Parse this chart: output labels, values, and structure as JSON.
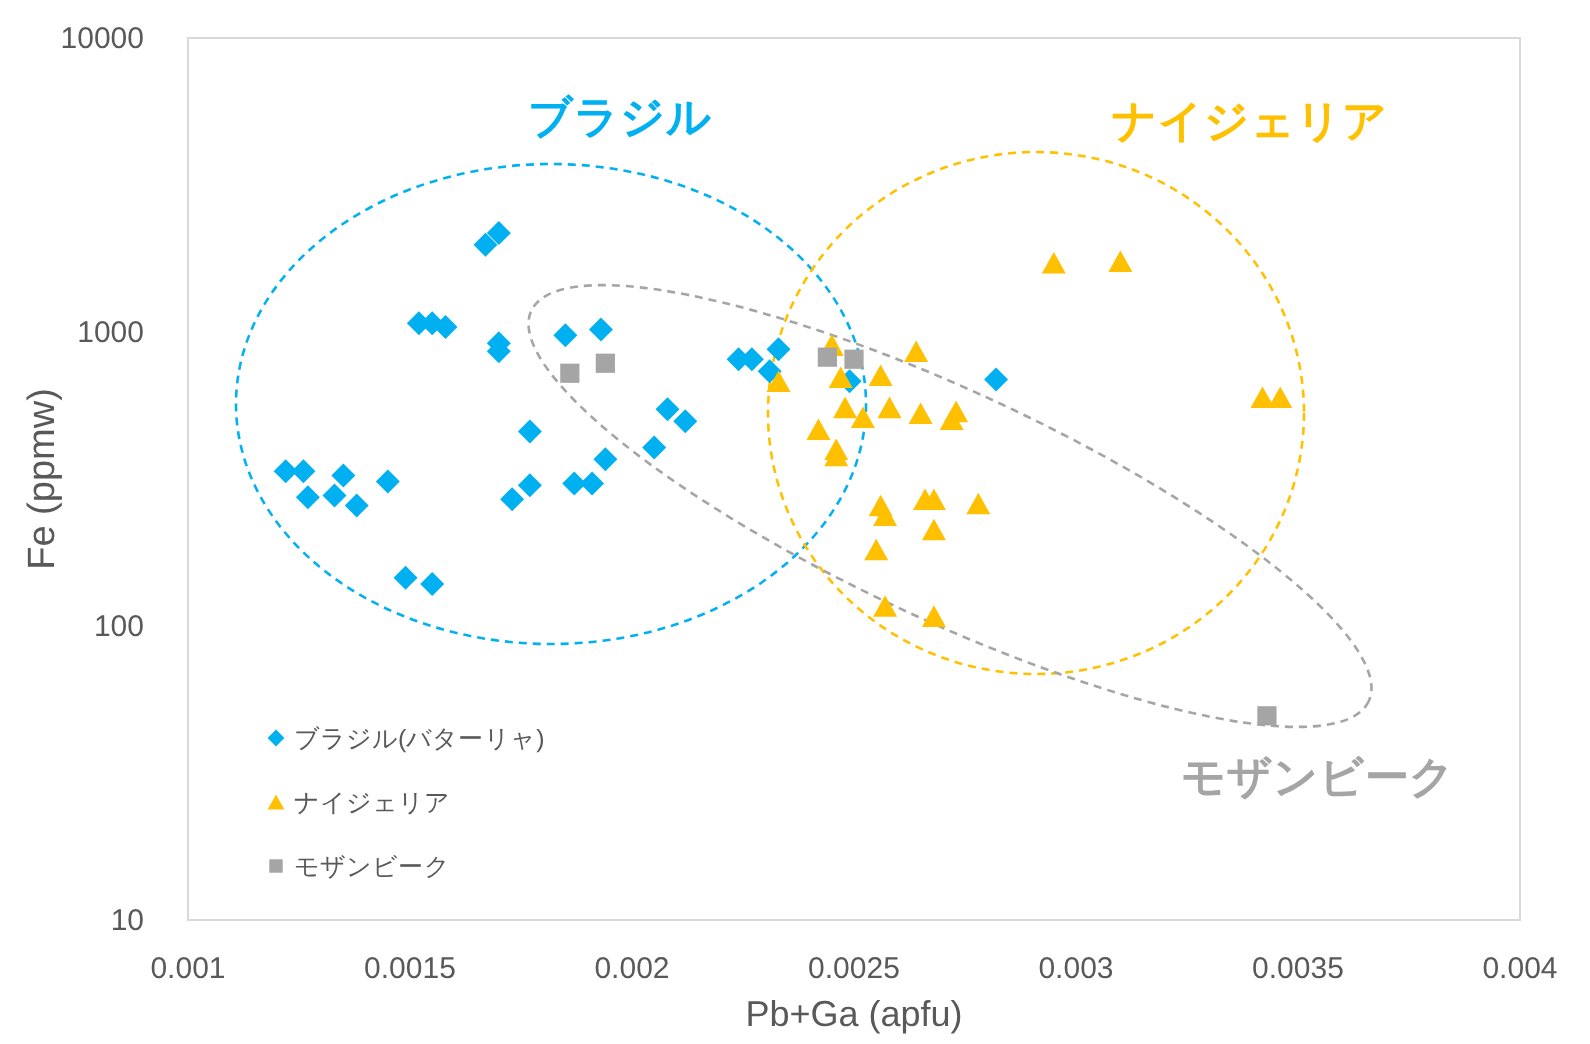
{
  "chart_data": {
    "type": "scatter",
    "xlabel": "Pb+Ga (apfu)",
    "ylabel": "Fe (ppmw)",
    "log": "y",
    "xlim": [
      0.001,
      0.004
    ],
    "ylim": [
      10,
      10000
    ],
    "xticks": [
      0.001,
      0.0015,
      0.002,
      0.0025,
      0.003,
      0.0035,
      0.004
    ],
    "yticks": [
      10,
      100,
      1000,
      10000
    ],
    "legend": "bottom left",
    "annotations": [
      "ブラジル",
      "ナイジェリア",
      "モザンビーク"
    ],
    "series": [
      {
        "name": "ブラジル(バターリャ)",
        "color": "#00b0f0",
        "marker": "diamond",
        "x": [
          0.00167,
          0.0017,
          0.00152,
          0.00155,
          0.00158,
          0.0017,
          0.0017,
          0.00185,
          0.00193,
          0.00177,
          0.00122,
          0.00126,
          0.00135,
          0.00127,
          0.00133,
          0.00138,
          0.00145,
          0.00149,
          0.00155,
          0.00173,
          0.00177,
          0.00187,
          0.00191,
          0.00194,
          0.00205,
          0.00208,
          0.00212,
          0.00224,
          0.00227,
          0.00233,
          0.00231,
          0.00249,
          0.00282
        ],
        "values": [
          1980,
          2170,
          1070,
          1070,
          1040,
          916,
          860,
          975,
          1020,
          459,
          336,
          336,
          325,
          274,
          278,
          257,
          310,
          146,
          139,
          270,
          301,
          305,
          305,
          369,
          405,
          546,
          497,
          808,
          808,
          874,
          735,
          680,
          690
        ]
      },
      {
        "name": "ナイジェリア",
        "color": "#ffc000",
        "marker": "triangle",
        "x": [
          0.00295,
          0.0031,
          0.00342,
          0.00346,
          0.00245,
          0.00264,
          0.00233,
          0.00247,
          0.00256,
          0.00248,
          0.00252,
          0.00258,
          0.00265,
          0.00273,
          0.00272,
          0.00242,
          0.00246,
          0.00246,
          0.00256,
          0.00257,
          0.00266,
          0.00268,
          0.00278,
          0.00268,
          0.00255,
          0.00257,
          0.00268
        ],
        "values": [
          1720,
          1740,
          600,
          600,
          902,
          860,
          680,
          702,
          713,
          554,
          513,
          554,
          529,
          537,
          505,
          467,
          399,
          380,
          257,
          238,
          270,
          270,
          261,
          213,
          182,
          117,
          108
        ]
      },
      {
        "name": "モザンビーク",
        "color": "#a5a5a5",
        "marker": "square",
        "x": [
          0.00186,
          0.00194,
          0.00244,
          0.0025,
          0.00343
        ],
        "values": [
          724,
          783,
          821,
          808,
          49.5
        ]
      }
    ]
  }
}
